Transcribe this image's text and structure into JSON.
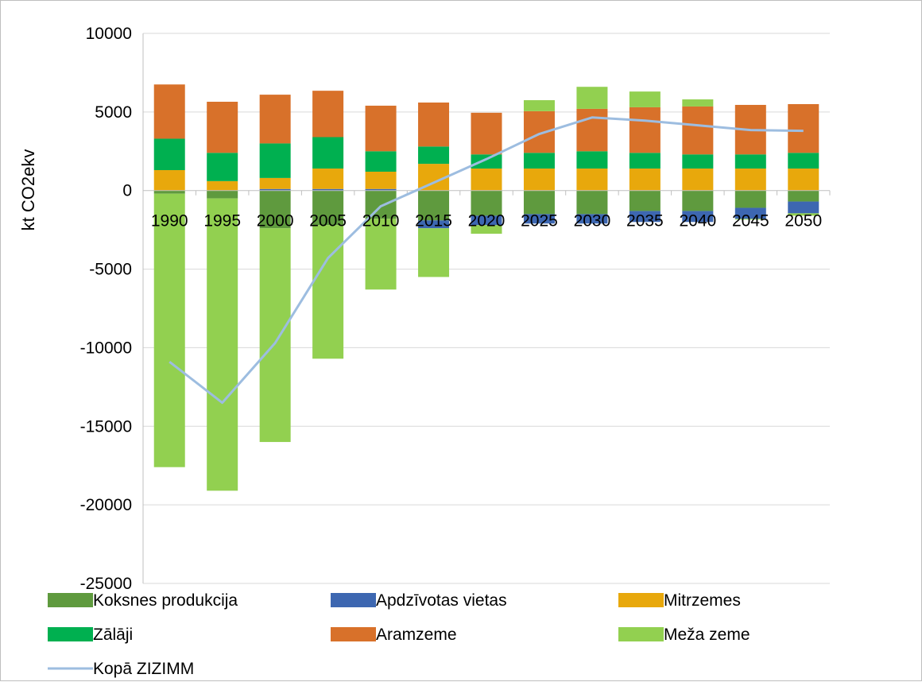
{
  "chart_data": {
    "type": "bar",
    "stacked": true,
    "title": "",
    "xlabel": "",
    "ylabel": "kt CO2ekv",
    "ylim": [
      -25000,
      10000
    ],
    "yticks": [
      10000,
      5000,
      0,
      -5000,
      -10000,
      -15000,
      -20000,
      -25000
    ],
    "grid": "horizontal",
    "legend_position": "bottom",
    "categories": [
      "1990",
      "1995",
      "2000",
      "2005",
      "2010",
      "2015",
      "2020",
      "2025",
      "2030",
      "2035",
      "2040",
      "2045",
      "2050"
    ],
    "series": [
      {
        "name": "Koksnes produkcija",
        "color": "#5f9a3e",
        "values": [
          -200,
          -500,
          -2400,
          -2200,
          -1800,
          -1900,
          -1600,
          -1500,
          -1500,
          -1300,
          -1300,
          -1100,
          -700
        ]
      },
      {
        "name": "Apdzīvotas vietas",
        "color": "#3d67b1",
        "values": [
          0,
          0,
          100,
          100,
          100,
          -500,
          -600,
          -600,
          -600,
          -700,
          -700,
          -700,
          -750
        ]
      },
      {
        "name": "Mitrzemes",
        "color": "#e8a80c",
        "values": [
          1300,
          600,
          700,
          1300,
          1100,
          1700,
          1400,
          1400,
          1400,
          1400,
          1400,
          1400,
          1400
        ]
      },
      {
        "name": "Zālāji",
        "color": "#00b050",
        "values": [
          2000,
          1800,
          2200,
          2000,
          1300,
          1100,
          900,
          1000,
          1100,
          1000,
          900,
          900,
          1000
        ]
      },
      {
        "name": "Aramzeme",
        "color": "#d8712a",
        "values": [
          3450,
          3250,
          3100,
          2950,
          2900,
          2800,
          2650,
          2650,
          2700,
          2900,
          3050,
          3150,
          3100
        ]
      },
      {
        "name": "Meža zeme",
        "color": "#92d050",
        "values": [
          -17400,
          -18600,
          -13600,
          -8500,
          -4500,
          -3100,
          -550,
          700,
          1400,
          1000,
          450,
          -50,
          -150
        ]
      }
    ],
    "line_series": [
      {
        "name": "Kopā ZIZIMM",
        "color": "#9dbde0",
        "values": [
          -10900,
          -13500,
          -9700,
          -4300,
          -1000,
          500,
          2000,
          3600,
          4650,
          4450,
          4150,
          3850,
          3800
        ]
      }
    ]
  }
}
